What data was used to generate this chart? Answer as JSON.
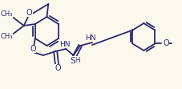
{
  "bg_color": "#fdf8ee",
  "line_color": "#2a2a6e",
  "lw": 1.3,
  "fs": 6.5,
  "figsize": [
    2.28,
    1.11
  ],
  "dpi": 100,
  "xlim": [
    0,
    228
  ],
  "ylim": [
    0,
    111
  ]
}
